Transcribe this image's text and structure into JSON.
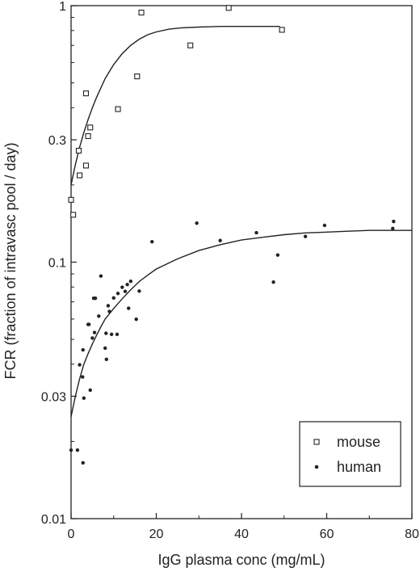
{
  "chart_data": {
    "type": "scatter",
    "xlabel": "IgG plasma conc (mg/mL)",
    "ylabel": "FCR (fraction of intravasc pool / day)",
    "xlim": [
      0,
      80
    ],
    "ylim": [
      0.01,
      1
    ],
    "yscale": "log",
    "x_ticks": [
      0,
      20,
      40,
      60,
      80
    ],
    "x_tick_labels": [
      "0",
      "20",
      "40",
      "60",
      "80"
    ],
    "y_ticks": [
      0.01,
      0.03,
      0.1,
      0.3,
      1
    ],
    "y_tick_labels": [
      "0.01",
      "0.03",
      "0.1",
      "0.3",
      "1"
    ],
    "grid": false,
    "legend_position": "bottom-right",
    "colors": {
      "mouse": "#222222",
      "human": "#222222",
      "axes": "#222222"
    },
    "series": [
      {
        "name": "mouse",
        "marker": "open-square",
        "points": [
          [
            0,
            0.175
          ],
          [
            0.5,
            0.153
          ],
          [
            1.8,
            0.272
          ],
          [
            2,
            0.218
          ],
          [
            3.5,
            0.238
          ],
          [
            4,
            0.31
          ],
          [
            4.5,
            0.335
          ],
          [
            3.5,
            0.455
          ],
          [
            11,
            0.395
          ],
          [
            15.5,
            0.53
          ],
          [
            16.5,
            0.94
          ],
          [
            28,
            0.7
          ],
          [
            37,
            0.98
          ],
          [
            49.5,
            0.805
          ]
        ],
        "fit": [
          [
            0,
            0.2
          ],
          [
            1,
            0.24
          ],
          [
            2,
            0.28
          ],
          [
            3,
            0.32
          ],
          [
            4,
            0.36
          ],
          [
            5,
            0.4
          ],
          [
            6,
            0.44
          ],
          [
            8,
            0.52
          ],
          [
            10,
            0.59
          ],
          [
            12,
            0.65
          ],
          [
            14,
            0.7
          ],
          [
            16,
            0.74
          ],
          [
            18,
            0.77
          ],
          [
            20,
            0.79
          ],
          [
            23,
            0.81
          ],
          [
            26,
            0.82
          ],
          [
            30,
            0.825
          ],
          [
            35,
            0.83
          ],
          [
            40,
            0.83
          ],
          [
            45,
            0.83
          ],
          [
            49,
            0.83
          ]
        ]
      },
      {
        "name": "human",
        "marker": "filled-circle",
        "points": [
          [
            0,
            0.0185
          ],
          [
            1.5,
            0.0185
          ],
          [
            2.8,
            0.0165
          ],
          [
            2,
            0.0398
          ],
          [
            2.7,
            0.0357
          ],
          [
            2.8,
            0.0455
          ],
          [
            3,
            0.0295
          ],
          [
            4.5,
            0.0317
          ],
          [
            4,
            0.0572
          ],
          [
            4.2,
            0.0572
          ],
          [
            5,
            0.0506
          ],
          [
            5.5,
            0.0532
          ],
          [
            5.3,
            0.0723
          ],
          [
            5.7,
            0.0723
          ],
          [
            6.5,
            0.0616
          ],
          [
            7,
            0.0883
          ],
          [
            8,
            0.0462
          ],
          [
            8.3,
            0.0418
          ],
          [
            8.2,
            0.0528
          ],
          [
            8.7,
            0.0676
          ],
          [
            9,
            0.0642
          ],
          [
            9.5,
            0.0523
          ],
          [
            10,
            0.0725
          ],
          [
            10.8,
            0.0523
          ],
          [
            11,
            0.0755
          ],
          [
            12,
            0.0798
          ],
          [
            12.7,
            0.0769
          ],
          [
            13.2,
            0.0818
          ],
          [
            13.5,
            0.0661
          ],
          [
            14,
            0.0842
          ],
          [
            15.3,
            0.0599
          ],
          [
            16,
            0.0771
          ],
          [
            19,
            0.1201
          ],
          [
            29.5,
            0.1419
          ],
          [
            35,
            0.1214
          ],
          [
            43.5,
            0.1302
          ],
          [
            47.5,
            0.0836
          ],
          [
            48.5,
            0.1066
          ],
          [
            55,
            0.1259
          ],
          [
            59.5,
            0.1391
          ],
          [
            75.5,
            0.1353
          ],
          [
            75.7,
            0.1441
          ]
        ],
        "fit": [
          [
            0,
            0.025
          ],
          [
            1,
            0.03
          ],
          [
            2,
            0.035
          ],
          [
            3,
            0.04
          ],
          [
            4,
            0.044
          ],
          [
            5,
            0.048
          ],
          [
            6,
            0.052
          ],
          [
            7,
            0.056
          ],
          [
            8,
            0.06
          ],
          [
            10,
            0.066
          ],
          [
            12,
            0.072
          ],
          [
            14,
            0.078
          ],
          [
            16,
            0.084
          ],
          [
            18,
            0.089
          ],
          [
            20,
            0.094
          ],
          [
            25,
            0.103
          ],
          [
            30,
            0.111
          ],
          [
            35,
            0.117
          ],
          [
            40,
            0.122
          ],
          [
            45,
            0.125
          ],
          [
            50,
            0.128
          ],
          [
            55,
            0.13
          ],
          [
            60,
            0.131
          ],
          [
            65,
            0.132
          ],
          [
            70,
            0.133
          ],
          [
            75,
            0.133
          ],
          [
            80,
            0.133
          ]
        ]
      }
    ]
  }
}
